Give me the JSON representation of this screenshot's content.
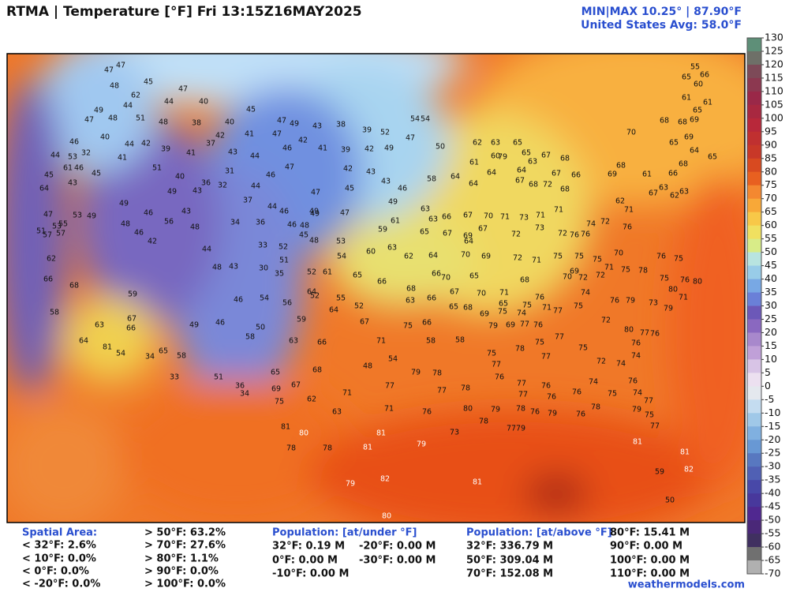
{
  "header": {
    "title": "RTMA | Temperature [°F]  Fri 13:15Z16MAY2025",
    "minmax": "MIN|MAX 10.25° | 87.90°F",
    "average": "United States Avg: 58.0°F"
  },
  "colorbar": {
    "lim": [
      -70,
      130
    ],
    "ticks": [
      130,
      125,
      120,
      115,
      110,
      105,
      100,
      95,
      90,
      85,
      80,
      75,
      70,
      65,
      60,
      55,
      50,
      45,
      40,
      35,
      30,
      25,
      20,
      15,
      10,
      5,
      0,
      -5,
      -10,
      -15,
      -20,
      -25,
      -30,
      -35,
      -40,
      -45,
      -50,
      -55,
      -60,
      -65,
      -70
    ]
  },
  "stations": [
    47,
    47,
    48,
    45,
    62,
    47,
    49,
    44,
    44,
    40,
    47,
    48,
    51,
    48,
    45,
    40,
    44,
    42,
    39,
    38,
    40,
    41,
    47,
    49,
    47,
    46,
    42,
    43,
    41,
    38,
    39,
    39,
    52,
    42,
    49,
    47,
    54,
    54,
    50,
    46,
    32,
    44,
    53,
    46,
    61,
    45,
    45,
    43,
    64,
    41,
    51,
    40,
    41,
    37,
    42,
    43,
    44,
    46,
    47,
    31,
    32,
    36,
    43,
    49,
    44,
    37,
    44,
    46,
    34,
    36,
    49,
    47,
    47,
    42,
    43,
    45,
    43,
    46,
    58,
    49,
    61,
    59,
    63,
    66,
    64,
    64,
    61,
    60,
    79,
    64,
    62,
    63,
    65,
    65,
    67,
    64,
    63,
    68,
    67,
    67,
    68,
    72,
    68,
    66,
    69,
    68,
    61,
    63,
    62,
    66,
    68,
    64,
    65,
    70,
    68,
    68,
    69,
    65,
    61,
    60,
    65,
    66,
    55,
    61,
    65,
    69,
    63,
    47,
    53,
    55,
    57,
    51,
    57,
    53,
    49,
    49,
    46,
    48,
    46,
    42,
    56,
    43,
    48,
    44,
    48,
    43,
    33,
    30,
    52,
    51,
    35,
    46,
    48,
    49,
    45,
    48,
    53,
    54,
    60,
    63,
    62,
    64,
    65,
    63,
    67,
    69,
    67,
    67,
    70,
    71,
    73,
    71,
    71,
    72,
    73,
    72,
    76,
    76,
    74,
    72,
    76,
    62,
    67,
    71,
    71,
    72,
    75,
    75,
    75,
    70,
    69,
    70,
    72,
    72,
    71,
    75,
    78,
    76,
    75,
    75,
    76,
    80,
    80,
    71,
    70,
    69,
    64,
    70,
    65,
    67,
    70,
    71,
    68,
    65,
    63,
    66,
    65,
    68,
    69,
    75,
    74,
    76,
    75,
    71,
    77,
    75,
    74,
    76,
    79,
    73,
    79,
    72,
    80,
    77,
    76,
    76,
    74,
    74,
    72,
    75,
    77,
    77,
    76,
    75,
    77,
    69,
    79,
    75,
    78,
    77,
    76,
    77,
    77,
    76,
    76,
    76,
    74,
    75,
    76,
    74,
    77,
    79,
    75,
    77,
    78,
    76,
    79,
    76,
    78,
    79,
    78,
    77,
    79,
    80,
    78,
    77,
    78,
    79,
    76,
    73,
    77,
    71,
    71,
    63,
    62,
    69,
    67,
    75,
    81,
    80,
    78,
    78,
    81,
    81,
    79,
    82,
    79,
    80,
    81,
    81,
    81,
    82,
    59,
    50,
    62,
    66,
    68,
    59,
    67,
    58,
    63,
    64,
    81,
    66,
    54,
    65,
    58,
    34,
    33,
    46,
    49,
    50,
    58,
    63,
    66,
    67,
    71,
    75,
    58,
    58,
    65,
    68,
    48,
    54,
    51,
    36,
    34,
    46,
    54,
    56,
    59,
    64,
    55,
    52,
    52,
    52,
    61,
    64,
    65,
    66,
    68,
    66,
    66
  ],
  "footer": {
    "spatial": {
      "title": "Spatial Area:",
      "below": [
        "< 32°F: 2.6%",
        "< 10°F: 0.0%",
        "< 0°F: 0.0%",
        "< -20°F: 0.0%"
      ],
      "above": [
        "> 50°F: 63.2%",
        "> 70°F: 27.6%",
        "> 80°F: 1.1%",
        "> 90°F: 0.0%",
        "> 100°F: 0.0%"
      ]
    },
    "pop_under": {
      "title": "Population: [at/under °F]",
      "items": [
        "32°F: 0.19 M",
        "-20°F: 0.00 M",
        "0°F: 0.00 M",
        "-30°F: 0.00 M",
        "-10°F: 0.00 M"
      ]
    },
    "pop_above": {
      "title": "Population: [at/above °F]",
      "items": [
        "32°F: 336.79 M",
        "50°F: 309.04 M",
        "70°F: 152.08 M",
        "80°F: 15.41 M",
        "90°F: 0.00 M",
        "100°F: 0.00 M",
        "110°F: 0.00 M"
      ]
    },
    "credit": "weathermodels.com"
  }
}
